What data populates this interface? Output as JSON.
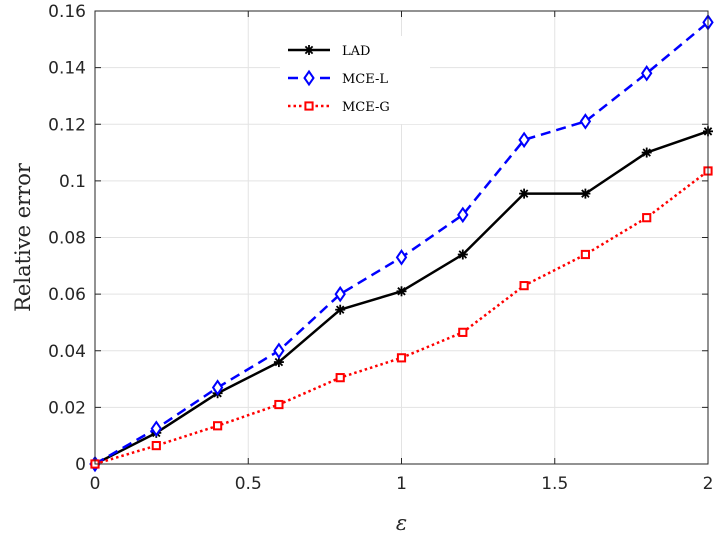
{
  "chart_data": {
    "type": "line",
    "title": "",
    "xlabel": "ε",
    "ylabel": "Relative error",
    "xlim": [
      0,
      2
    ],
    "ylim": [
      0,
      0.16
    ],
    "xticks": [
      0,
      0.5,
      1,
      1.5,
      2
    ],
    "xtick_labels": [
      "0",
      "0.5",
      "1",
      "1.5",
      "2"
    ],
    "yticks": [
      0,
      0.02,
      0.04,
      0.06,
      0.08,
      0.1,
      0.12,
      0.14,
      0.16
    ],
    "ytick_labels": [
      "0",
      "0.02",
      "0.04",
      "0.06",
      "0.08",
      "0.1",
      "0.12",
      "0.14",
      "0.16"
    ],
    "grid": true,
    "legend_position": "top-center",
    "x": [
      0,
      0.2,
      0.4,
      0.6,
      0.8,
      1.0,
      1.2,
      1.4,
      1.6,
      1.8,
      2.0
    ],
    "series": [
      {
        "name": "LAD",
        "color": "#000000",
        "line_style": "solid",
        "marker": "asterisk",
        "values": [
          0,
          0.011,
          0.025,
          0.036,
          0.0545,
          0.061,
          0.074,
          0.0955,
          0.0955,
          0.11,
          0.1175
        ]
      },
      {
        "name": "MCE-L",
        "color": "#0000ff",
        "line_style": "dashed",
        "marker": "diamond",
        "values": [
          0,
          0.0125,
          0.027,
          0.04,
          0.06,
          0.073,
          0.088,
          0.1145,
          0.121,
          0.138,
          0.156
        ]
      },
      {
        "name": "MCE-G",
        "color": "#ff0000",
        "line_style": "dotted",
        "marker": "square",
        "values": [
          0,
          0.0065,
          0.0135,
          0.021,
          0.0305,
          0.0375,
          0.0465,
          0.063,
          0.074,
          0.087,
          0.1035
        ]
      }
    ]
  }
}
